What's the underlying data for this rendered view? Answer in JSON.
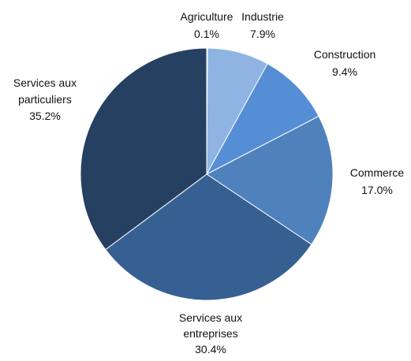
{
  "chart_data": {
    "type": "pie",
    "title": "",
    "slices": [
      {
        "label": "Agriculture",
        "label_lines": [
          "Agriculture"
        ],
        "value": 0.1,
        "display": "0.1%",
        "color": "#8fb4e3"
      },
      {
        "label": "Industrie",
        "label_lines": [
          "Industrie"
        ],
        "value": 7.9,
        "display": "7.9%",
        "color": "#8fb4e3"
      },
      {
        "label": "Construction",
        "label_lines": [
          "Construction"
        ],
        "value": 9.4,
        "display": "9.4%",
        "color": "#558ed5"
      },
      {
        "label": "Commerce",
        "label_lines": [
          "Commerce"
        ],
        "value": 17.0,
        "display": "17.0%",
        "color": "#4f81bd"
      },
      {
        "label": "Services aux entreprises",
        "label_lines": [
          "Services aux",
          "entreprises"
        ],
        "value": 30.4,
        "display": "30.4%",
        "color": "#376092"
      },
      {
        "label": "Services aux particuliers",
        "label_lines": [
          "Services aux",
          "particuliers"
        ],
        "value": 35.2,
        "display": "35.2%",
        "color": "#254061"
      }
    ],
    "start": "12 o'clock",
    "direction": "clockwise",
    "legend": "none"
  }
}
